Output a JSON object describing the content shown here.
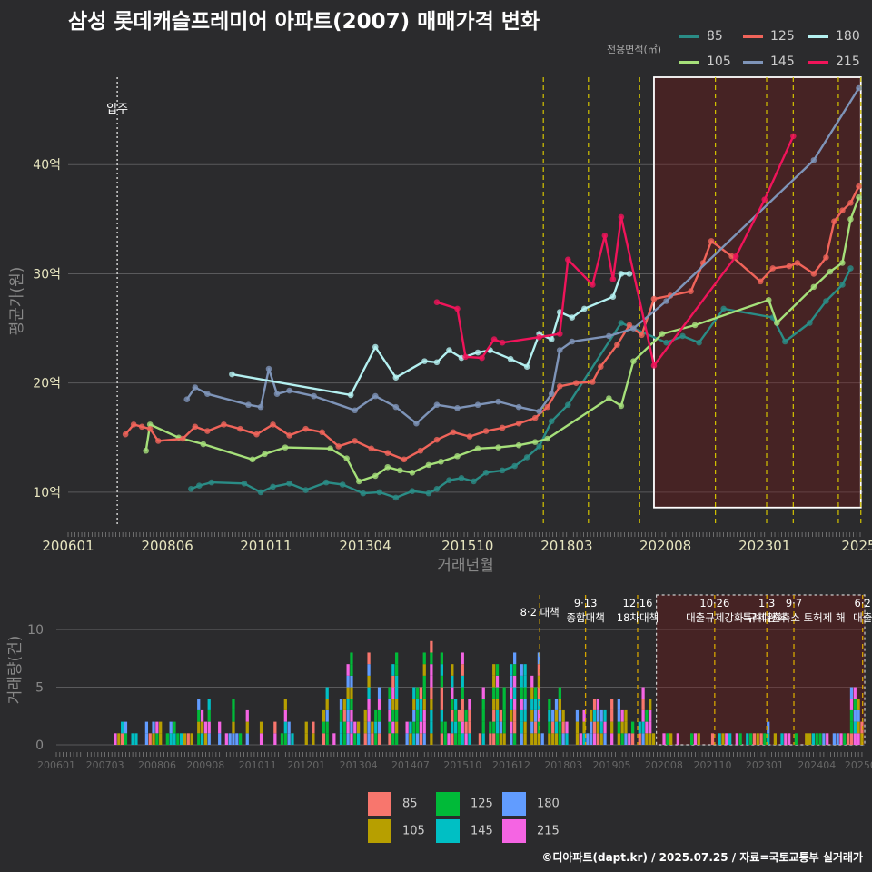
{
  "title": "삼성 롯데캐슬프레미어 아파트(2007) 매매가격 변화",
  "caption": "©디아파트(dapt.kr) / 2025.07.25 / 자료=국토교통부 실거래가",
  "legend": {
    "title": "전용면적(㎡)",
    "items": [
      {
        "label": "85",
        "color": "#2a8c86"
      },
      {
        "label": "105",
        "color": "#a6e07a"
      },
      {
        "label": "125",
        "color": "#f0645a"
      },
      {
        "label": "145",
        "color": "#7e94b8"
      },
      {
        "label": "180",
        "color": "#b4f0f0"
      },
      {
        "label": "215",
        "color": "#f0145a"
      }
    ]
  },
  "bar_legend": {
    "items": [
      {
        "label": "85",
        "color": "#f8766d"
      },
      {
        "label": "105",
        "color": "#b79f00"
      },
      {
        "label": "125",
        "color": "#00ba38"
      },
      {
        "label": "145",
        "color": "#00bfc4"
      },
      {
        "label": "180",
        "color": "#619cff"
      },
      {
        "label": "215",
        "color": "#f564e3"
      }
    ]
  },
  "chart_data": [
    {
      "type": "line",
      "xlabel": "거래년월",
      "ylabel": "평균가(원)",
      "x_range": [
        2006.0,
        2025.4
      ],
      "ylim": [
        7,
        48
      ],
      "y_unit": "억",
      "y_ticks": [
        10,
        20,
        30,
        40
      ],
      "y_tick_labels": [
        "10억",
        "20억",
        "30억",
        "40억"
      ],
      "x_tick_labels": [
        "200601",
        "200806",
        "201011",
        "201304",
        "201510",
        "201803",
        "202008",
        "202301",
        "2025"
      ],
      "x_tick_values": [
        2006.0,
        2008.42,
        2010.83,
        2013.25,
        2015.75,
        2018.17,
        2020.58,
        2023.0,
        2025.3
      ],
      "annotation_movein": {
        "x": 2007.2,
        "label": "입주"
      },
      "highlight_box": {
        "x0": 2020.3,
        "x1": 2025.35,
        "y0": 8.6,
        "y1": 48
      },
      "policy_lines": [
        2017.6,
        2018.7,
        2019.95,
        2021.8,
        2023.05,
        2023.7,
        2024.8,
        2025.35
      ],
      "series": [
        {
          "name": "85",
          "color": "#2a8c86",
          "points": [
            [
              2009.0,
              10.3
            ],
            [
              2009.2,
              10.6
            ],
            [
              2009.5,
              10.9
            ],
            [
              2010.3,
              10.8
            ],
            [
              2010.7,
              10.0
            ],
            [
              2011.0,
              10.5
            ],
            [
              2011.4,
              10.8
            ],
            [
              2011.8,
              10.2
            ],
            [
              2012.3,
              10.9
            ],
            [
              2012.7,
              10.7
            ],
            [
              2013.2,
              9.9
            ],
            [
              2013.6,
              10.0
            ],
            [
              2014.0,
              9.5
            ],
            [
              2014.4,
              10.1
            ],
            [
              2014.8,
              9.9
            ],
            [
              2015.0,
              10.3
            ],
            [
              2015.3,
              11.1
            ],
            [
              2015.6,
              11.3
            ],
            [
              2015.9,
              11.0
            ],
            [
              2016.2,
              11.8
            ],
            [
              2016.6,
              12.0
            ],
            [
              2016.9,
              12.4
            ],
            [
              2017.2,
              13.2
            ],
            [
              2017.5,
              14.2
            ],
            [
              2017.8,
              16.5
            ],
            [
              2018.2,
              18.0
            ],
            [
              2019.5,
              25.5
            ],
            [
              2020.6,
              23.7
            ],
            [
              2021.0,
              24.3
            ],
            [
              2021.4,
              23.7
            ],
            [
              2022.0,
              26.8
            ],
            [
              2023.2,
              26.0
            ],
            [
              2023.5,
              23.8
            ],
            [
              2024.1,
              25.5
            ],
            [
              2024.5,
              27.5
            ],
            [
              2024.9,
              29.0
            ],
            [
              2025.1,
              30.5
            ]
          ]
        },
        {
          "name": "105",
          "color": "#a6e07a",
          "points": [
            [
              2007.9,
              13.8
            ],
            [
              2008.0,
              16.2
            ],
            [
              2008.7,
              15.0
            ],
            [
              2009.3,
              14.4
            ],
            [
              2010.5,
              13.0
            ],
            [
              2010.8,
              13.5
            ],
            [
              2011.3,
              14.1
            ],
            [
              2012.4,
              14.0
            ],
            [
              2012.8,
              13.1
            ],
            [
              2013.1,
              11.0
            ],
            [
              2013.5,
              11.5
            ],
            [
              2013.8,
              12.3
            ],
            [
              2014.1,
              12.0
            ],
            [
              2014.4,
              11.8
            ],
            [
              2014.8,
              12.5
            ],
            [
              2015.1,
              12.8
            ],
            [
              2015.5,
              13.3
            ],
            [
              2016.0,
              14.0
            ],
            [
              2016.5,
              14.1
            ],
            [
              2017.0,
              14.3
            ],
            [
              2017.4,
              14.6
            ],
            [
              2017.7,
              14.9
            ],
            [
              2019.2,
              18.6
            ],
            [
              2019.5,
              17.9
            ],
            [
              2019.8,
              22.0
            ],
            [
              2020.5,
              24.5
            ],
            [
              2021.3,
              25.3
            ],
            [
              2023.1,
              27.6
            ],
            [
              2023.3,
              25.5
            ],
            [
              2024.2,
              28.8
            ],
            [
              2024.6,
              30.2
            ],
            [
              2024.9,
              31.0
            ],
            [
              2025.1,
              35.0
            ],
            [
              2025.3,
              37.0
            ]
          ]
        },
        {
          "name": "125",
          "color": "#f0645a",
          "points": [
            [
              2007.4,
              15.3
            ],
            [
              2007.6,
              16.2
            ],
            [
              2007.8,
              16.0
            ],
            [
              2008.0,
              15.8
            ],
            [
              2008.2,
              14.7
            ],
            [
              2008.8,
              14.9
            ],
            [
              2009.1,
              16.0
            ],
            [
              2009.4,
              15.6
            ],
            [
              2009.8,
              16.2
            ],
            [
              2010.2,
              15.8
            ],
            [
              2010.6,
              15.3
            ],
            [
              2011.0,
              16.2
            ],
            [
              2011.4,
              15.2
            ],
            [
              2011.8,
              15.8
            ],
            [
              2012.2,
              15.5
            ],
            [
              2012.6,
              14.2
            ],
            [
              2013.0,
              14.7
            ],
            [
              2013.4,
              14.0
            ],
            [
              2013.8,
              13.6
            ],
            [
              2014.2,
              13.0
            ],
            [
              2014.6,
              13.8
            ],
            [
              2015.0,
              14.8
            ],
            [
              2015.4,
              15.5
            ],
            [
              2015.8,
              15.1
            ],
            [
              2016.2,
              15.6
            ],
            [
              2016.6,
              15.9
            ],
            [
              2017.0,
              16.3
            ],
            [
              2017.4,
              16.8
            ],
            [
              2017.7,
              17.8
            ],
            [
              2018.0,
              19.7
            ],
            [
              2018.4,
              20.0
            ],
            [
              2018.8,
              20.1
            ],
            [
              2019.0,
              21.5
            ],
            [
              2019.4,
              23.5
            ],
            [
              2019.7,
              25.3
            ],
            [
              2020.0,
              24.4
            ],
            [
              2020.3,
              27.7
            ],
            [
              2020.7,
              28.0
            ],
            [
              2021.2,
              28.4
            ],
            [
              2021.5,
              31.0
            ],
            [
              2021.7,
              33.0
            ],
            [
              2022.2,
              31.6
            ],
            [
              2022.9,
              29.3
            ],
            [
              2023.2,
              30.5
            ],
            [
              2023.6,
              30.7
            ],
            [
              2023.8,
              31.0
            ],
            [
              2024.2,
              30.0
            ],
            [
              2024.5,
              31.5
            ],
            [
              2024.7,
              34.8
            ],
            [
              2024.9,
              35.8
            ],
            [
              2025.1,
              36.5
            ],
            [
              2025.3,
              38.0
            ]
          ]
        },
        {
          "name": "145",
          "color": "#7e94b8",
          "points": [
            [
              2008.9,
              18.5
            ],
            [
              2009.1,
              19.6
            ],
            [
              2009.4,
              19.0
            ],
            [
              2010.4,
              18.0
            ],
            [
              2010.7,
              17.8
            ],
            [
              2010.9,
              21.3
            ],
            [
              2011.1,
              19.0
            ],
            [
              2011.4,
              19.3
            ],
            [
              2012.0,
              18.8
            ],
            [
              2013.0,
              17.5
            ],
            [
              2013.5,
              18.8
            ],
            [
              2014.0,
              17.8
            ],
            [
              2014.5,
              16.3
            ],
            [
              2015.0,
              18.0
            ],
            [
              2015.5,
              17.7
            ],
            [
              2016.0,
              18.0
            ],
            [
              2016.5,
              18.3
            ],
            [
              2017.0,
              17.8
            ],
            [
              2017.5,
              17.4
            ],
            [
              2017.8,
              19.0
            ],
            [
              2018.0,
              23.0
            ],
            [
              2018.3,
              23.8
            ],
            [
              2019.2,
              24.3
            ],
            [
              2019.8,
              25.0
            ],
            [
              2020.6,
              27.5
            ],
            [
              2024.2,
              40.4
            ],
            [
              2025.3,
              47.0
            ]
          ]
        },
        {
          "name": "180",
          "color": "#b4f0f0",
          "points": [
            [
              2010.0,
              20.8
            ],
            [
              2012.9,
              18.9
            ],
            [
              2013.5,
              23.3
            ],
            [
              2014.0,
              20.5
            ],
            [
              2014.7,
              22.0
            ],
            [
              2015.0,
              21.9
            ],
            [
              2015.3,
              23.0
            ],
            [
              2015.6,
              22.3
            ],
            [
              2016.0,
              22.8
            ],
            [
              2016.3,
              23.0
            ],
            [
              2016.8,
              22.2
            ],
            [
              2017.2,
              21.5
            ],
            [
              2017.5,
              24.5
            ],
            [
              2017.8,
              24.0
            ],
            [
              2018.0,
              26.5
            ],
            [
              2018.3,
              26.0
            ],
            [
              2018.6,
              26.8
            ],
            [
              2019.3,
              27.9
            ],
            [
              2019.5,
              30.0
            ],
            [
              2019.7,
              30.0
            ]
          ]
        },
        {
          "name": "215",
          "color": "#f0145a",
          "points": [
            [
              2015.0,
              27.4
            ],
            [
              2015.5,
              26.8
            ],
            [
              2015.7,
              22.4
            ],
            [
              2016.1,
              22.3
            ],
            [
              2016.4,
              24.0
            ],
            [
              2016.6,
              23.7
            ],
            [
              2017.5,
              24.2
            ],
            [
              2018.0,
              24.5
            ],
            [
              2018.2,
              31.3
            ],
            [
              2018.8,
              29.0
            ],
            [
              2019.1,
              33.5
            ],
            [
              2019.3,
              29.5
            ],
            [
              2019.5,
              35.2
            ],
            [
              2020.3,
              21.6
            ],
            [
              2022.3,
              31.6
            ],
            [
              2023.0,
              36.8
            ],
            [
              2023.7,
              42.6
            ]
          ]
        }
      ]
    },
    {
      "type": "bar",
      "ylabel": "거래량(건)",
      "ylim": [
        0,
        13
      ],
      "y_ticks": [
        0,
        5,
        10
      ],
      "x_range": [
        2006.0,
        2025.4
      ],
      "x_tick_labels": [
        "200601",
        "200703",
        "200806",
        "200908",
        "201011",
        "201201",
        "201304",
        "201407",
        "201510",
        "201612",
        "201803",
        "201905",
        "202008",
        "202110",
        "202301",
        "202404",
        "20250"
      ],
      "x_tick_values": [
        2006.0,
        2007.17,
        2008.42,
        2009.58,
        2010.83,
        2012.0,
        2013.25,
        2014.5,
        2015.75,
        2016.92,
        2018.17,
        2019.33,
        2020.58,
        2021.75,
        2023.0,
        2024.25,
        2025.3
      ],
      "highlight_box": {
        "x0": 2020.4,
        "x1": 2025.4,
        "y0": 0,
        "y1": 13
      },
      "policy_lines": [
        {
          "x": 2017.6,
          "label": "8·2 대책"
        },
        {
          "x": 2018.7,
          "label": "9·13\n종합대책"
        },
        {
          "x": 2019.95,
          "label": "12·16\n18차대책"
        },
        {
          "x": 2021.8,
          "label": "10·26\n대출규제강화"
        },
        {
          "x": 2023.05,
          "label": "1·3\n규제완화"
        },
        {
          "x": 2023.7,
          "label": "9·7\n특례대출축소 토허제 해"
        },
        {
          "x": 2025.35,
          "label": "6·2\n대출"
        }
      ]
    }
  ]
}
